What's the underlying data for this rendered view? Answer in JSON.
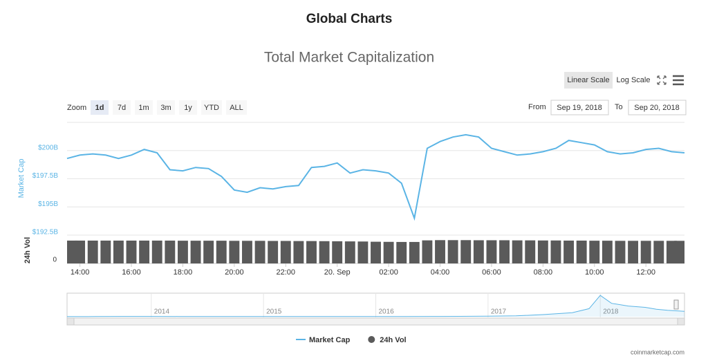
{
  "header": {
    "title": "Global Charts"
  },
  "controls": {
    "scale_options": [
      "Linear Scale",
      "Log Scale"
    ],
    "zoom_label": "Zoom",
    "zoom_options": [
      "1d",
      "7d",
      "1m",
      "3m",
      "1y",
      "YTD",
      "ALL"
    ],
    "from_label": "From",
    "from": "Sep 19, 2018",
    "to_label": "To",
    "to": "Sep 20, 2018"
  },
  "chart_data": {
    "type": "line",
    "title": "Total Market Capitalization",
    "y_label": "Market Cap",
    "y2_label": "24h Vol",
    "x": [
      "13:30",
      "14:00",
      "14:30",
      "15:00",
      "15:30",
      "16:00",
      "16:30",
      "17:00",
      "17:30",
      "18:00",
      "18:30",
      "19:00",
      "19:30",
      "20:00",
      "20:30",
      "21:00",
      "21:30",
      "22:00",
      "22:30",
      "23:00",
      "23:30",
      "20. Sep",
      "00:30",
      "01:00",
      "01:30",
      "02:00",
      "02:30",
      "03:00",
      "03:30",
      "04:00",
      "04:30",
      "05:00",
      "05:30",
      "06:00",
      "06:30",
      "07:00",
      "07:30",
      "08:00",
      "08:30",
      "09:00",
      "09:30",
      "10:00",
      "10:30",
      "11:00",
      "11:30",
      "12:00",
      "12:30",
      "13:00",
      "13:30"
    ],
    "xticks": [
      "14:00",
      "16:00",
      "18:00",
      "20:00",
      "22:00",
      "20. Sep",
      "02:00",
      "04:00",
      "06:00",
      "08:00",
      "10:00",
      "12:00"
    ],
    "ylim": [
      192.5,
      202.5
    ],
    "yticks": [
      {
        "value": 192.5,
        "label": "$192.5B"
      },
      {
        "value": 195,
        "label": "$195B"
      },
      {
        "value": 197.5,
        "label": "$197.5B"
      },
      {
        "value": 200,
        "label": "$200B"
      }
    ],
    "y2lim": [
      0,
      23
    ],
    "y2ticks": [
      0
    ],
    "grid": true,
    "series": [
      {
        "name": "Market Cap",
        "color": "#5ab4e5",
        "values": [
          199.3,
          199.6,
          199.7,
          199.6,
          199.3,
          199.6,
          200.1,
          199.8,
          198.3,
          198.2,
          198.5,
          198.4,
          197.7,
          196.5,
          196.3,
          196.7,
          196.6,
          196.8,
          196.9,
          198.5,
          198.6,
          198.9,
          198.0,
          198.3,
          198.2,
          198.0,
          197.1,
          194.0,
          200.2,
          200.8,
          201.2,
          201.4,
          201.2,
          200.2,
          199.9,
          199.6,
          199.7,
          199.9,
          200.2,
          200.9,
          200.7,
          200.5,
          199.9,
          199.7,
          199.8,
          200.1,
          200.2,
          199.9,
          199.8
        ]
      },
      {
        "name": "24h Vol",
        "type": "bar",
        "axis": "y2",
        "color": "#5a5a5a",
        "values": [
          20.0,
          20.0,
          20.0,
          20.0,
          20.0,
          20.0,
          20.0,
          20.0,
          20.0,
          19.9,
          19.9,
          19.9,
          19.9,
          19.8,
          19.8,
          19.8,
          19.7,
          19.7,
          19.6,
          19.6,
          19.5,
          19.4,
          19.3,
          19.2,
          19.0,
          18.9,
          18.8,
          18.8,
          20.2,
          20.4,
          20.4,
          20.4,
          20.3,
          20.3,
          20.3,
          20.2,
          20.2,
          20.1,
          20.1,
          20.0,
          20.0,
          19.9,
          19.9,
          19.8,
          19.8,
          19.8,
          19.8,
          19.8,
          19.8
        ]
      }
    ]
  },
  "navigator": {
    "xlim": [
      2013.25,
      2018.75
    ],
    "xticks": [
      2014,
      2015,
      2016,
      2017,
      2018
    ],
    "ylim": [
      0,
      830
    ],
    "x": [
      2013.25,
      2013.5,
      2013.75,
      2014,
      2014.25,
      2014.5,
      2014.75,
      2015,
      2015.25,
      2015.5,
      2015.75,
      2016,
      2016.25,
      2016.5,
      2016.75,
      2017,
      2017.25,
      2017.5,
      2017.75,
      2017.9,
      2018,
      2018.1,
      2018.25,
      2018.4,
      2018.5,
      2018.6,
      2018.75
    ],
    "values": [
      2,
      5,
      10,
      10,
      8,
      7,
      6,
      4,
      4,
      4,
      5,
      7,
      9,
      10,
      12,
      18,
      30,
      80,
      150,
      300,
      800,
      500,
      400,
      350,
      280,
      240,
      200
    ]
  },
  "credit": "coinmarketcap.com"
}
